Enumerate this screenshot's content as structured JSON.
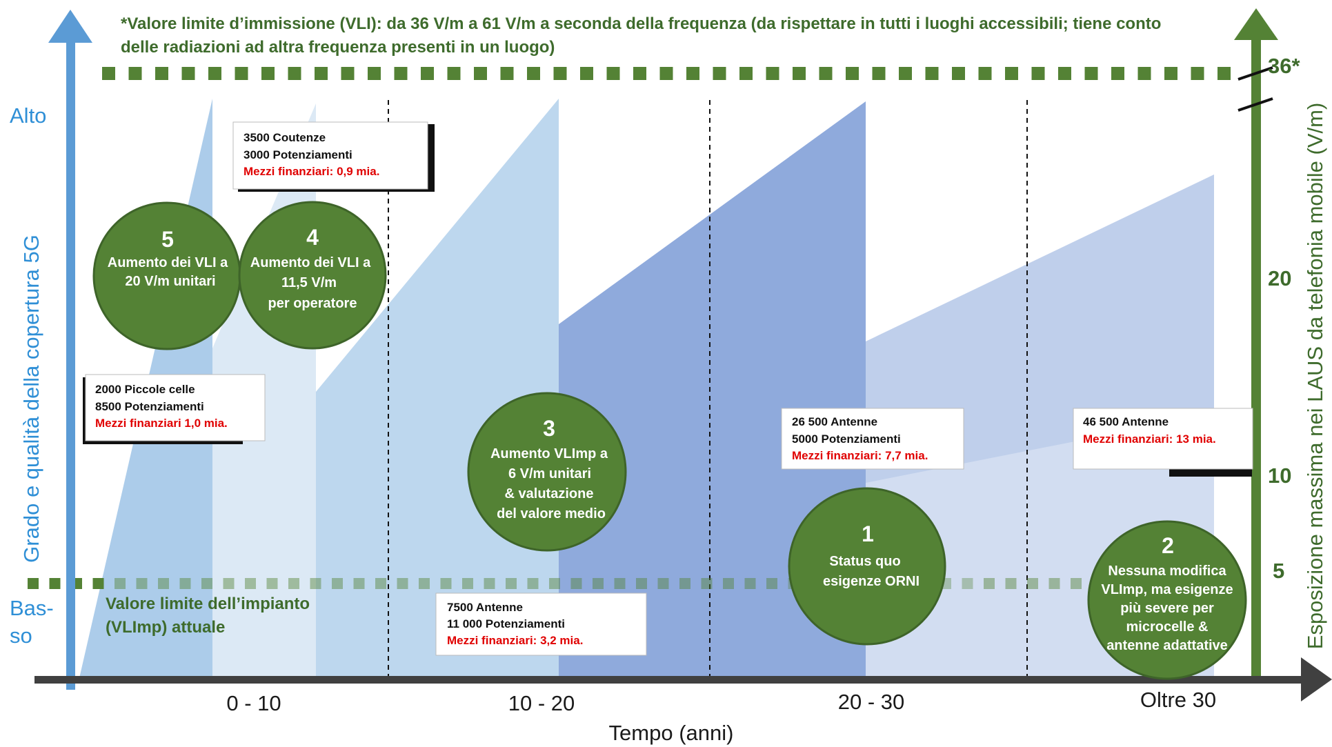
{
  "note": {
    "line1": "*Valore limite d’immissione (VLI): da 36 V/m a 61 V/m a seconda della frequenza (da rispettare in tutti i luoghi accessibili; tiene conto",
    "line2": "delle radiazioni ad altra frequenza presenti in un luogo)"
  },
  "left_axis": {
    "title": "Grado e qualità della copertura 5G",
    "high": "Alto",
    "low_line1": "Bas-",
    "low_line2": "so",
    "color": "#5b9bd5"
  },
  "right_axis": {
    "title": "Esposizione massima nei LAUS da telefonia mobile  (V/m)",
    "ticks": [
      "36*",
      "20",
      "10",
      "5"
    ],
    "color": "#548235"
  },
  "x_axis": {
    "title": "Tempo (anni)",
    "categories": [
      "0 - 10",
      "10 - 20",
      "20 - 30",
      "Oltre 30"
    ]
  },
  "vlimp": {
    "line1": "Valore limite dell’impianto",
    "line2": "(VLImp) attuale"
  },
  "circles": [
    {
      "num": "5",
      "lines": [
        "Aumento dei VLI a",
        "20 V/m unitari"
      ]
    },
    {
      "num": "4",
      "lines": [
        "Aumento dei VLI a",
        "11,5 V/m",
        "per operatore"
      ]
    },
    {
      "num": "3",
      "lines": [
        "Aumento VLImp a",
        "6 V/m  unitari",
        "& valutazione",
        "del valore medio"
      ]
    },
    {
      "num": "1",
      "lines": [
        "Status quo",
        "esigenze ORNI"
      ]
    },
    {
      "num": "2",
      "lines": [
        "Nessuna modifica",
        "VLImp, ma esigenze",
        "più severe per",
        "microcelle &",
        "antenne adattative"
      ]
    }
  ],
  "boxes": [
    {
      "lines": [
        "3500 Coutenze",
        "3000 Potenziamenti"
      ],
      "finance": "Mezzi finanziari:  0,9 mia."
    },
    {
      "lines": [
        "2000 Piccole celle",
        "8500 Potenziamenti"
      ],
      "finance": "Mezzi finanziari  1,0 mia."
    },
    {
      "lines": [
        "7500 Antenne",
        "11 000 Potenziamenti"
      ],
      "finance": "Mezzi finanziari:  3,2 mia."
    },
    {
      "lines": [
        "26 500 Antenne",
        "5000 Potenziamenti"
      ],
      "finance": "Mezzi finanziari: 7,7 mia."
    },
    {
      "lines": [
        "46 500 Antenne"
      ],
      "finance": "Mezzi finanziari: 13 mia."
    }
  ],
  "colors": {
    "green_circle": "#548235",
    "green_line": "#4f7f2f",
    "blue_axis": "#5b9bd5",
    "finance_red": "#e00000"
  }
}
